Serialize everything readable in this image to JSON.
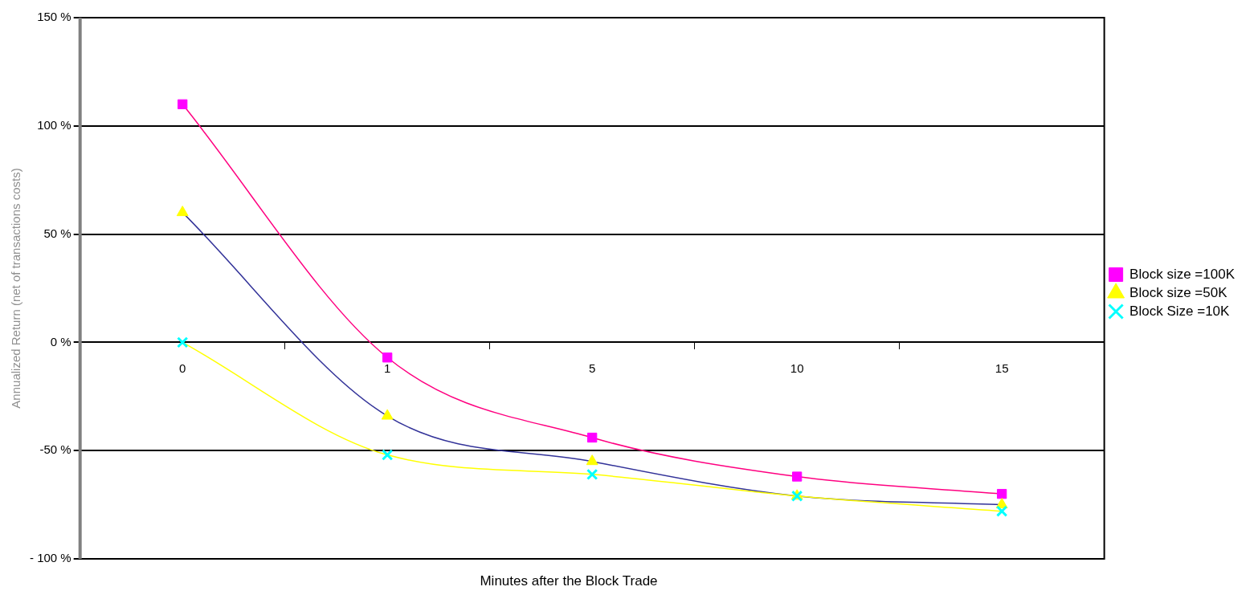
{
  "chart_data": {
    "type": "line",
    "xlabel": "Minutes after the Block Trade",
    "ylabel": "Annualized Return (net of transactions costs)",
    "categories": [
      "0",
      "1",
      "5",
      "10",
      "15"
    ],
    "series": [
      {
        "name": "Block size =100K",
        "color": "#ff0080",
        "marker": "square",
        "colors": [
          "#ff00ff",
          "#ff00ff",
          "#ff00ff",
          "#ff00ff",
          "#ff00ff"
        ],
        "values": [
          110,
          -7,
          -44,
          -62,
          -70
        ]
      },
      {
        "name": "Block size =50K",
        "color": "#333399",
        "marker": "triangle",
        "colors": [
          "#ffff00",
          "#ffff00",
          "#ffff00",
          "#ffff00",
          "#ffff00"
        ],
        "values": [
          60,
          -34,
          -55,
          -71,
          -75
        ]
      },
      {
        "name": "Block Size =10K",
        "color": "#ffff00",
        "marker": "cross",
        "colors": [
          "#00ffff",
          "#00ffff",
          "#00ffff",
          "#00ffff",
          "#00ffff"
        ],
        "values": [
          0,
          -52,
          -61,
          -71,
          -78
        ]
      }
    ],
    "ylim": [
      -100,
      150
    ],
    "yticks": [
      {
        "value": -100,
        "label": "- 100 %"
      },
      {
        "value": -50,
        "label": "-50 %"
      },
      {
        "value": 0,
        "label": "0 %"
      },
      {
        "value": 50,
        "label": "50 %"
      },
      {
        "value": 100,
        "label": "100 %"
      },
      {
        "value": 150,
        "label": "150 %"
      }
    ],
    "grid": "y",
    "legend": "right"
  }
}
